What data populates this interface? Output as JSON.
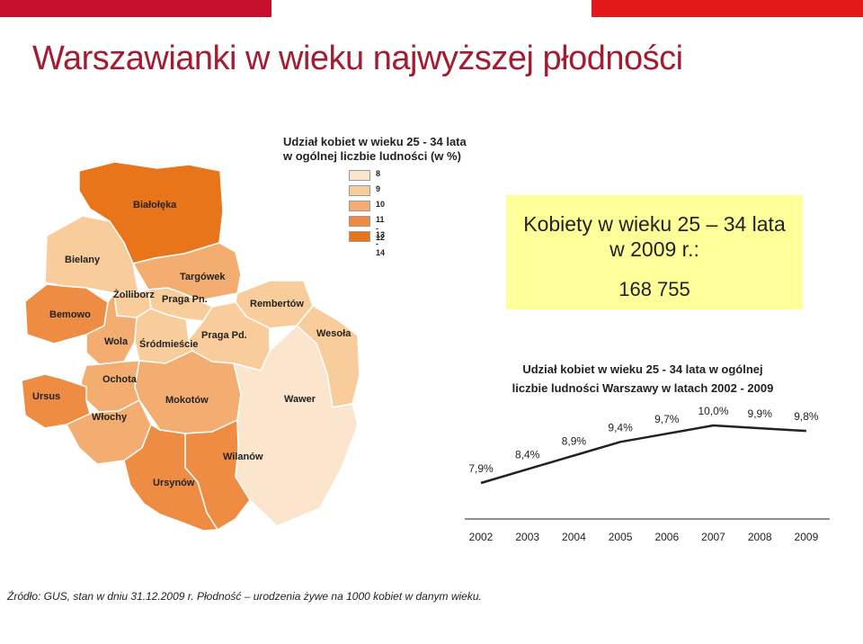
{
  "page": {
    "title": "Warszawianki w wieku najwyższej płodności",
    "source_note": "Źródło: GUS, stan w dniu 31.12.2009 r. Płodność – urodzenia żywe na 1000 kobiet w danym wieku."
  },
  "colors": {
    "top_bar_left": "#c8102e",
    "top_bar_right": "#e31919",
    "title": "#a51c30",
    "highlight_box": "#ffff99",
    "legend": [
      "#fbe5cc",
      "#f9cc9c",
      "#f4ad70",
      "#ef8c43",
      "#e8751a"
    ]
  },
  "map": {
    "title_line1": "Udział kobiet w wieku 25 - 34 lata",
    "title_line2": "w ogólnej liczbie ludności (w %)",
    "legend": [
      {
        "label": "8",
        "color": "#fbe5cc"
      },
      {
        "label": "9",
        "color": "#f9cc9c"
      },
      {
        "label": "10",
        "color": "#f4ad70"
      },
      {
        "label": "11 - 12",
        "color": "#ef8c43"
      },
      {
        "label": "13 - 14",
        "color": "#e8751a"
      }
    ],
    "districts": [
      {
        "id": "bialoleka",
        "name": "Białołęka"
      },
      {
        "id": "bielany",
        "name": "Bielany"
      },
      {
        "id": "targowek",
        "name": "Targówek"
      },
      {
        "id": "zoliborz",
        "name": "Żolliborz"
      },
      {
        "id": "praga-pn",
        "name": "Praga Pn."
      },
      {
        "id": "rembertow",
        "name": "Rembertów"
      },
      {
        "id": "bemowo",
        "name": "Bemowo"
      },
      {
        "id": "wola",
        "name": "Wola"
      },
      {
        "id": "srodmiescie",
        "name": "Śródmieście"
      },
      {
        "id": "praga-pd",
        "name": "Praga Pd."
      },
      {
        "id": "wesola",
        "name": "Wesoła"
      },
      {
        "id": "ochota",
        "name": "Ochota"
      },
      {
        "id": "ursus",
        "name": "Ursus"
      },
      {
        "id": "mokotow",
        "name": "Mokotów"
      },
      {
        "id": "wawer",
        "name": "Wawer"
      },
      {
        "id": "wlochy",
        "name": "Włochy"
      },
      {
        "id": "wilanow",
        "name": "Wilanów"
      },
      {
        "id": "ursynow",
        "name": "Ursynów"
      }
    ]
  },
  "highlight": {
    "title_line1": "Kobiety w wieku 25 – 34 lata",
    "title_line2": "w 2009 r.:",
    "value": "168 755"
  },
  "chart_data": {
    "type": "line",
    "title": "Udział kobiet w wieku 25 - 34 lata w ogólnej liczbie ludności Warszawy w latach 2002 - 2009",
    "title_line1": "Udział kobiet w wieku 25 - 34 lata w ogólnej",
    "title_line2": "liczbie ludności Warszawy w latach 2002 - 2009",
    "categories": [
      "2002",
      "2003",
      "2004",
      "2005",
      "2006",
      "2007",
      "2008",
      "2009"
    ],
    "values": [
      7.9,
      8.4,
      8.9,
      9.4,
      9.7,
      10.0,
      9.9,
      9.8
    ],
    "data_labels": [
      "7,9%",
      "8,4%",
      "8,9%",
      "9,4%",
      "9,7%",
      "10,0%",
      "9,9%",
      "9,8%"
    ],
    "ylim": [
      7.0,
      10.5
    ],
    "grid": false,
    "legend": "none"
  }
}
